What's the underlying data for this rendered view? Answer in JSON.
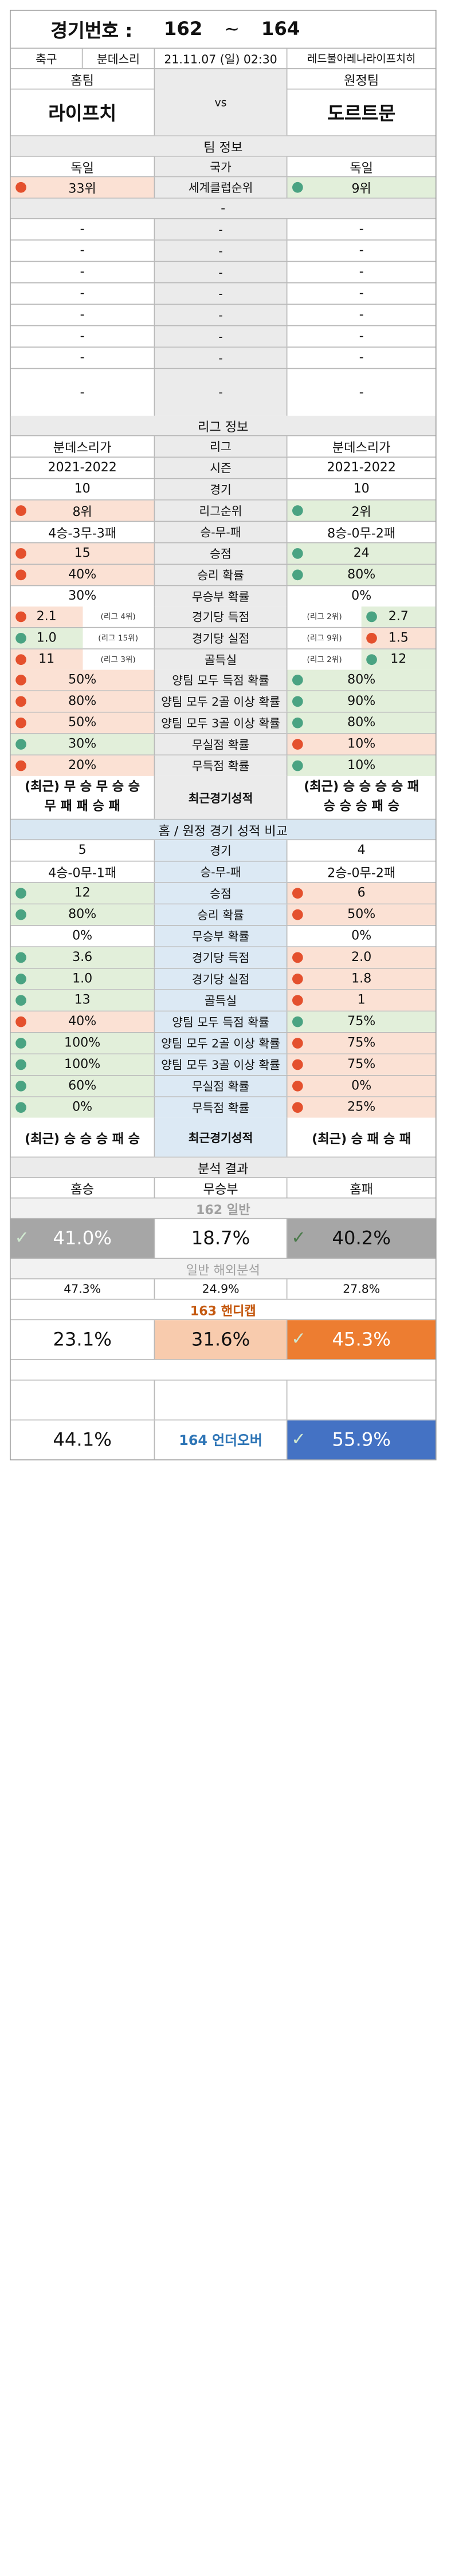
{
  "header": {
    "label": "경기번호 :",
    "start": "162",
    "tilde": "~",
    "end": "164"
  },
  "match": {
    "sport": "축구",
    "league": "분데스리",
    "datetime": "21.11.07 (일) 02:30",
    "venue": "레드불아레나라이프치히"
  },
  "teams": {
    "home_label": "홈팀",
    "away_label": "원정팀",
    "vs": "vs",
    "home": "라이프치",
    "away": "도르트문"
  },
  "team_info": {
    "title": "팀 정보",
    "country": {
      "home": "독일",
      "label": "국가",
      "away": "독일"
    },
    "club_rank": {
      "home": "33위",
      "label": "세계클럽순위",
      "away": "9위",
      "home_color": "red",
      "away_color": "green"
    },
    "dash": "-",
    "blank_rows": [
      [
        "-",
        "-",
        "-"
      ],
      [
        "-",
        "-",
        "-"
      ],
      [
        "-",
        "-",
        "-"
      ],
      [
        "-",
        "-",
        "-"
      ],
      [
        "-",
        "-",
        "-"
      ],
      [
        "-",
        "-",
        "-"
      ],
      [
        "-",
        "-",
        "-"
      ],
      [
        "-",
        "-",
        "-"
      ]
    ]
  },
  "league_info": {
    "title": "리그 정보",
    "rows": [
      {
        "home": "분데스리가",
        "label": "리그",
        "away": "분데스리가"
      },
      {
        "home": "2021-2022",
        "label": "시즌",
        "away": "2021-2022"
      },
      {
        "home": "10",
        "label": "경기",
        "away": "10"
      },
      {
        "home": "8위",
        "label": "리그순위",
        "away": "2위",
        "hc": "red",
        "ac": "green",
        "hb": "pk",
        "ab": "gr"
      },
      {
        "home": "4승-3무-3패",
        "label": "승-무-패",
        "away": "8승-0무-2패"
      },
      {
        "home": "15",
        "label": "승점",
        "away": "24",
        "hc": "red",
        "ac": "green",
        "hb": "pk",
        "ab": "gr"
      },
      {
        "home": "40%",
        "label": "승리 확률",
        "away": "80%",
        "hc": "red",
        "ac": "green",
        "hb": "pk",
        "ab": "gr"
      },
      {
        "home": "30%",
        "label": "무승부 확률",
        "away": "0%"
      }
    ],
    "split_rows": [
      {
        "home": "2.1",
        "home_note": "(리그 4위)",
        "label": "경기당 득점",
        "away_note": "(리그 2위)",
        "away": "2.7",
        "hc": "red",
        "ac": "green",
        "hb": "pk",
        "ab": "gr"
      },
      {
        "home": "1.0",
        "home_note": "(리그 15위)",
        "label": "경기당 실점",
        "away_note": "(리그 9위)",
        "away": "1.5",
        "hc": "green",
        "ac": "red",
        "hb": "gr",
        "ab": "pk"
      },
      {
        "home": "11",
        "home_note": "(리그 3위)",
        "label": "골득실",
        "away_note": "(리그 2위)",
        "away": "12",
        "hc": "red",
        "ac": "green",
        "hb": "pk",
        "ab": "gr"
      }
    ],
    "rows2": [
      {
        "home": "50%",
        "label": "양팀 모두 득점 확률",
        "away": "80%",
        "hc": "red",
        "ac": "green",
        "hb": "pk",
        "ab": "gr"
      },
      {
        "home": "80%",
        "label": "양팀 모두 2골 이상 확률",
        "away": "90%",
        "hc": "red",
        "ac": "green",
        "hb": "pk",
        "ab": "gr"
      },
      {
        "home": "50%",
        "label": "양팀 모두 3골 이상 확률",
        "away": "80%",
        "hc": "red",
        "ac": "green",
        "hb": "pk",
        "ab": "gr"
      },
      {
        "home": "30%",
        "label": "무실점 확률",
        "away": "10%",
        "hc": "green",
        "ac": "red",
        "hb": "gr",
        "ab": "pk"
      },
      {
        "home": "20%",
        "label": "무득점 확률",
        "away": "10%",
        "hc": "red",
        "ac": "green",
        "hb": "pk",
        "ab": "gr"
      }
    ],
    "recent": {
      "home_l1": "(최근) 무 승 무 승 승",
      "home_l2": "무 패 패 승 패",
      "label": "최근경기성적",
      "away_l1": "(최근) 승 승 승 승 패",
      "away_l2": "승 승 승 패 승"
    }
  },
  "ha_compare": {
    "title": "홈 / 원정 경기 성적 비교",
    "rows": [
      {
        "home": "5",
        "label": "경기",
        "away": "4"
      },
      {
        "home": "4승-0무-1패",
        "label": "승-무-패",
        "away": "2승-0무-2패"
      },
      {
        "home": "12",
        "label": "승점",
        "away": "6",
        "hc": "green",
        "ac": "red",
        "hb": "gr",
        "ab": "pk"
      },
      {
        "home": "80%",
        "label": "승리 확률",
        "away": "50%",
        "hc": "green",
        "ac": "red",
        "hb": "gr",
        "ab": "pk"
      },
      {
        "home": "0%",
        "label": "무승부 확률",
        "away": "0%"
      },
      {
        "home": "3.6",
        "label": "경기당 득점",
        "away": "2.0",
        "hc": "green",
        "ac": "red",
        "hb": "gr",
        "ab": "pk"
      },
      {
        "home": "1.0",
        "label": "경기당 실점",
        "away": "1.8",
        "hc": "green",
        "ac": "red",
        "hb": "gr",
        "ab": "pk"
      },
      {
        "home": "13",
        "label": "골득실",
        "away": "1",
        "hc": "green",
        "ac": "red",
        "hb": "gr",
        "ab": "pk"
      },
      {
        "home": "40%",
        "label": "양팀 모두 득점 확률",
        "away": "75%",
        "hc": "red",
        "ac": "green",
        "hb": "pk",
        "ab": "gr"
      },
      {
        "home": "100%",
        "label": "양팀 모두 2골 이상 확률",
        "away": "75%",
        "hc": "green",
        "ac": "red",
        "hb": "gr",
        "ab": "pk"
      },
      {
        "home": "100%",
        "label": "양팀 모두 3골 이상 확률",
        "away": "75%",
        "hc": "green",
        "ac": "red",
        "hb": "gr",
        "ab": "pk"
      },
      {
        "home": "60%",
        "label": "무실점 확률",
        "away": "0%",
        "hc": "green",
        "ac": "red",
        "hb": "gr",
        "ab": "pk"
      },
      {
        "home": "0%",
        "label": "무득점 확률",
        "away": "25%",
        "hc": "green",
        "ac": "red",
        "hb": "gr",
        "ab": "pk"
      }
    ],
    "recent": {
      "home": "(최근) 승 승 승 패 승",
      "label": "최근경기성적",
      "away": "(최근) 승 패 승 패"
    }
  },
  "analysis": {
    "title": "분석 결과",
    "cols": {
      "home": "홈승",
      "draw": "무승부",
      "away": "홈패"
    },
    "general": {
      "title": "162 일반",
      "home": "41.0%",
      "draw": "18.7%",
      "away": "40.2%"
    },
    "overseas": {
      "title": "일반 해외분석",
      "home": "47.3%",
      "draw": "24.9%",
      "away": "27.8%"
    },
    "handicap": {
      "title": "163 핸디캡",
      "home": "23.1%",
      "draw": "31.6%",
      "away": "45.3%"
    },
    "underover": {
      "home": "44.1%",
      "label": "164 언더오버",
      "away": "55.9%"
    }
  },
  "colors": {
    "red": "#e4502d",
    "green": "#4aa382",
    "pink": "#fbe1d4",
    "lightgreen": "#e2efda",
    "orange": "#ed7d31",
    "blue": "#4472c4",
    "gray": "#a6a6a6"
  }
}
